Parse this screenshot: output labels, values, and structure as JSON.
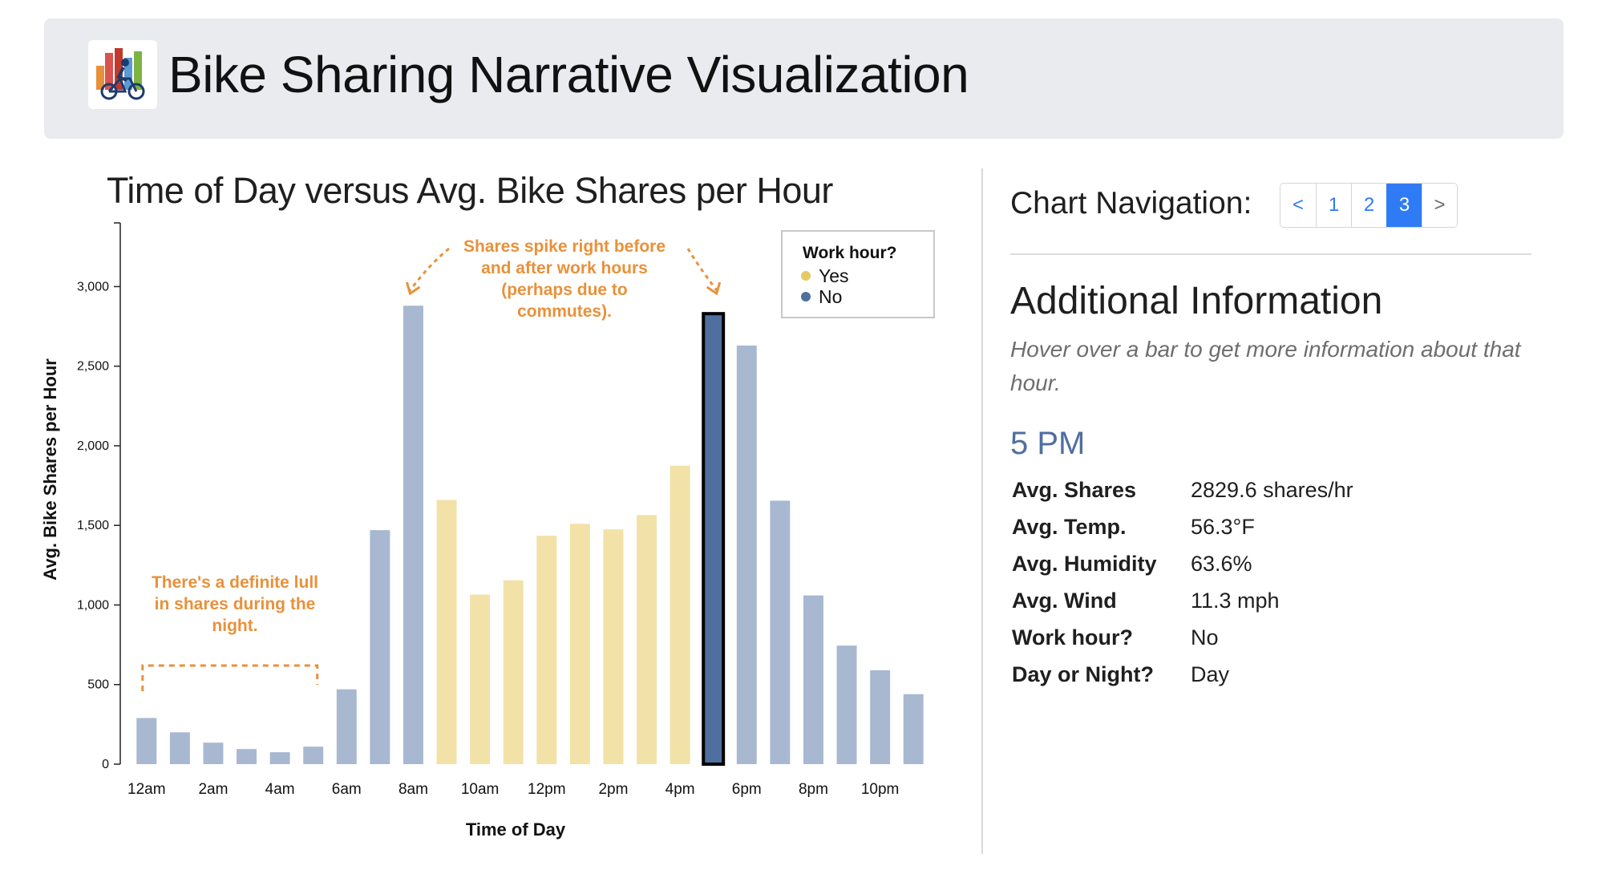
{
  "header": {
    "title": "Bike Sharing Narrative Visualization",
    "logo_icon": "bike-chart-logo-icon"
  },
  "navigation": {
    "label": "Chart Navigation:",
    "prev_label": "<",
    "next_label": ">",
    "pages": [
      "1",
      "2",
      "3"
    ],
    "active_page": "3"
  },
  "info": {
    "title": "Additional Information",
    "hint": "Hover over a bar to get more information about that hour.",
    "selected_hour": "5 PM",
    "details": [
      {
        "key": "Avg. Shares",
        "value": "2829.6 shares/hr"
      },
      {
        "key": "Avg. Temp.",
        "value": "56.3°F"
      },
      {
        "key": "Avg. Humidity",
        "value": "63.6%"
      },
      {
        "key": "Avg. Wind",
        "value": "11.3 mph"
      },
      {
        "key": "Work hour?",
        "value": "No"
      },
      {
        "key": "Day or Night?",
        "value": "Day"
      }
    ]
  },
  "chart_data": {
    "type": "bar",
    "title": "Time of Day versus Avg. Bike Shares per Hour",
    "xlabel": "Time of Day",
    "ylabel": "Avg. Bike Shares per Hour",
    "ylim": [
      0,
      3400
    ],
    "yticks": [
      0,
      500,
      1000,
      1500,
      2000,
      2500,
      3000
    ],
    "ytick_labels": [
      "0",
      "500",
      "1,000",
      "1,500",
      "2,000",
      "2,500",
      "3,000"
    ],
    "xtick_labels": [
      "12am",
      "2am",
      "4am",
      "6am",
      "8am",
      "10am",
      "12pm",
      "2pm",
      "4pm",
      "6pm",
      "8pm",
      "10pm"
    ],
    "hours": [
      0,
      1,
      2,
      3,
      4,
      5,
      6,
      7,
      8,
      9,
      10,
      11,
      12,
      13,
      14,
      15,
      16,
      17,
      18,
      19,
      20,
      21,
      22,
      23
    ],
    "values": [
      290,
      200,
      135,
      95,
      75,
      110,
      470,
      1470,
      2880,
      1660,
      1065,
      1155,
      1435,
      1510,
      1475,
      1565,
      1875,
      2830,
      2630,
      1655,
      1060,
      745,
      590,
      440
    ],
    "work_hour": [
      "No",
      "No",
      "No",
      "No",
      "No",
      "No",
      "No",
      "No",
      "No",
      "Yes",
      "Yes",
      "Yes",
      "Yes",
      "Yes",
      "Yes",
      "Yes",
      "Yes",
      "No",
      "No",
      "No",
      "No",
      "No",
      "No",
      "No"
    ],
    "highlighted_hour": 17,
    "legend": {
      "title": "Work hour?",
      "position": "top-right",
      "items": [
        {
          "label": "Yes",
          "color": "#f2e2a8"
        },
        {
          "label": "No",
          "color": "#a9b8d1"
        }
      ],
      "dot_colors": {
        "Yes": "#e6c965",
        "No": "#4f6f9e"
      }
    },
    "highlight_color": "#4f6f9e",
    "annotation_color": "#e8913a",
    "annotations": [
      {
        "text_lines": [
          "There's a definite lull",
          "in shares during the",
          "night."
        ],
        "span_hours": [
          0,
          5
        ]
      },
      {
        "text_lines": [
          "Shares spike right before",
          "and after work hours",
          "(perhaps due to",
          "commutes)."
        ],
        "points_to_hours": [
          8,
          17
        ]
      }
    ],
    "grid": false
  }
}
